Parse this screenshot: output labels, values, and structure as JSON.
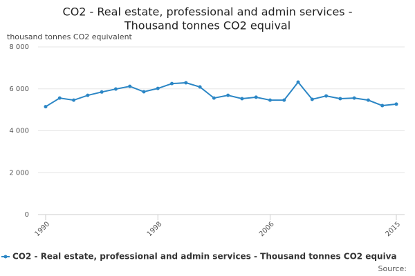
{
  "chart_data": {
    "type": "line",
    "title": [
      "CO2 - Real estate, professional and admin services -",
      "Thousand tonnes CO2 equival"
    ],
    "y_label": "thousand tonnes CO2 equivalent",
    "x": [
      1990,
      1991,
      1992,
      1993,
      1994,
      1995,
      1996,
      1997,
      1998,
      1999,
      2000,
      2001,
      2002,
      2003,
      2004,
      2005,
      2006,
      2007,
      2008,
      2009,
      2010,
      2011,
      2012,
      2013,
      2014,
      2015
    ],
    "series": [
      {
        "name": "CO2 - Real estate, professional and admin services - Thousand tonnes CO2 equiva",
        "color": "#2b86c5",
        "values": [
          5150,
          5560,
          5460,
          5690,
          5850,
          5990,
          6120,
          5860,
          6020,
          6250,
          6290,
          6090,
          5560,
          5690,
          5530,
          5600,
          5460,
          5460,
          6320,
          5500,
          5660,
          5530,
          5560,
          5460,
          5200,
          5270
        ]
      }
    ],
    "xlim": [
      1990,
      2015
    ],
    "xticks": [
      1990,
      1998,
      2006,
      2015
    ],
    "ylim": [
      0,
      8000
    ],
    "yticks": [
      0,
      {
        "value": 2000,
        "label": "2 000"
      },
      {
        "value": 4000,
        "label": "4 000"
      },
      {
        "value": 6000,
        "label": "6 000"
      },
      {
        "value": 8000,
        "label": "8 000"
      }
    ],
    "grid": true,
    "legend": "bottom",
    "source": "Source:"
  }
}
